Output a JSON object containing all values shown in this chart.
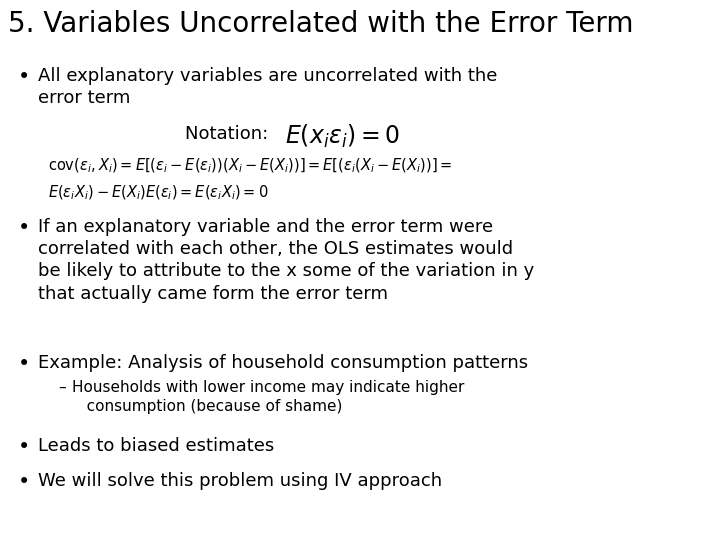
{
  "title": "5. Variables Uncorrelated with the Error Term",
  "background_color": "#ffffff",
  "title_fontsize": 20,
  "body_fontsize": 13,
  "small_fontsize": 11,
  "title_color": "#000000",
  "bullet1": "All explanatory variables are uncorrelated with the\nerror term",
  "notation_label": "Notation:  ",
  "notation_math": "$E(x_i\\varepsilon_i) = 0$",
  "cov_line1": "$\\mathrm{cov}(\\varepsilon_i, X_i) = E[(\\varepsilon_i - E(\\varepsilon_i))(X_i - E(X_i))] = E[(\\varepsilon_i(X_i - E(X_i))] =$",
  "cov_line2": "$E(\\varepsilon_i X_i) - E(X_i)E(\\varepsilon_i) = E(\\varepsilon_i X_i) = 0$",
  "bullet2": "If an explanatory variable and the error term were\ncorrelated with each other, the OLS estimates would\nbe likely to attribute to the x some of the variation in y\nthat actually came form the error term",
  "bullet3": "Example: Analysis of household consumption patterns",
  "sub_bullet": "Households with lower income may indicate higher\n   consumption (because of shame)",
  "bullet4": "Leads to biased estimates",
  "bullet5": "We will solve this problem using IV approach"
}
